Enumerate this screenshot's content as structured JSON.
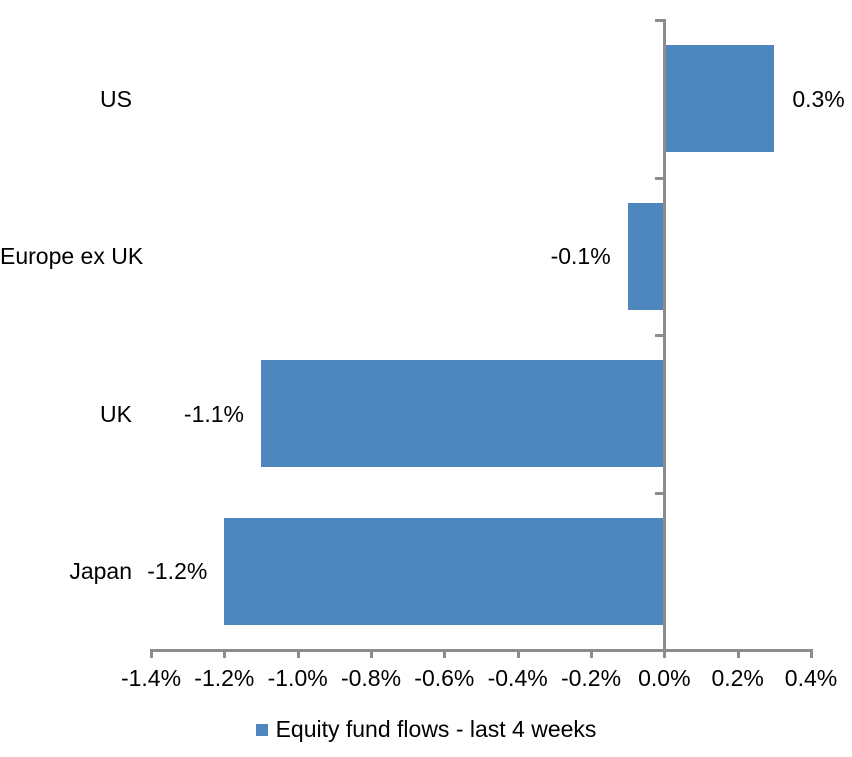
{
  "chart_data": {
    "type": "bar",
    "orientation": "horizontal",
    "title": "",
    "xlabel": "",
    "ylabel": "",
    "categories": [
      "US",
      "Europe ex UK",
      "UK",
      "Japan"
    ],
    "values": [
      0.3,
      -0.1,
      -1.1,
      -1.2
    ],
    "data_labels": [
      "0.3%",
      "-0.1%",
      "-1.1%",
      "-1.2%"
    ],
    "legend": [
      "Equity fund flows - last 4 weeks"
    ],
    "legend_position": "bottom",
    "xlim": [
      -1.4,
      0.4
    ],
    "x_tick_values": [
      -1.4,
      -1.2,
      -1.0,
      -0.8,
      -0.6,
      -0.4,
      -0.2,
      0.0,
      0.2,
      0.4
    ],
    "x_tick_labels": [
      "-1.4%",
      "-1.2%",
      "-1.0%",
      "-0.8%",
      "-0.6%",
      "-0.4%",
      "-0.2%",
      "0.0%",
      "0.2%",
      "0.4%"
    ],
    "grid": false
  },
  "colors": {
    "bar": "#4E87BD",
    "axis": "#8C8C8C",
    "text": "#000000",
    "background": "#FFFFFF"
  }
}
